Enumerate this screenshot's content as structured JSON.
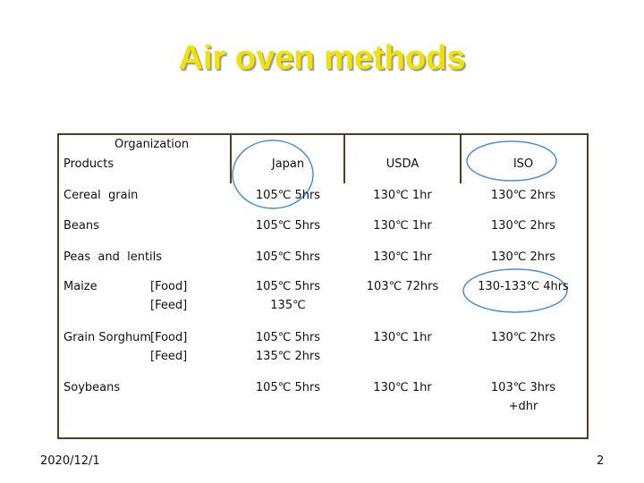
{
  "title": "Air oven methods",
  "table": {
    "header": {
      "organization": "Organization",
      "products": "Products",
      "columns": [
        "Japan",
        "USDA",
        "ISO"
      ]
    },
    "rows": [
      {
        "product": "Cereal  grain",
        "variants": [],
        "cells": [
          [
            "105℃ 5hrs"
          ],
          [
            "130℃ 1hr"
          ],
          [
            "130℃ 2hrs"
          ]
        ]
      },
      {
        "product": "Beans",
        "variants": [],
        "cells": [
          [
            "105℃ 5hrs"
          ],
          [
            "130℃ 1hr"
          ],
          [
            "130℃ 2hrs"
          ]
        ]
      },
      {
        "product": "Peas  and  lentils",
        "variants": [],
        "cells": [
          [
            "105℃ 5hrs"
          ],
          [
            "130℃ 1hr"
          ],
          [
            "130℃ 2hrs"
          ]
        ]
      },
      {
        "product": "Maize",
        "variants": [
          "[Food]",
          "[Feed]"
        ],
        "cells": [
          [
            "105℃ 5hrs",
            "135℃"
          ],
          [
            "103℃ 72hrs"
          ],
          [
            "130-133℃ 4hrs"
          ]
        ]
      },
      {
        "product": "Grain Sorghum",
        "variants": [
          "[Food]",
          "[Feed]"
        ],
        "cells": [
          [
            "105℃ 5hrs",
            "135℃ 2hrs"
          ],
          [
            "130℃ 1hr"
          ],
          [
            "130℃ 2hrs"
          ]
        ]
      },
      {
        "product": "Soybeans",
        "variants": [],
        "cells": [
          [
            "105℃ 5hrs"
          ],
          [
            "130℃ 1hr"
          ],
          [
            "103℃ 3hrs",
            "+dhr"
          ]
        ]
      }
    ]
  },
  "footer": {
    "date": "2020/12/1",
    "page": "2"
  }
}
